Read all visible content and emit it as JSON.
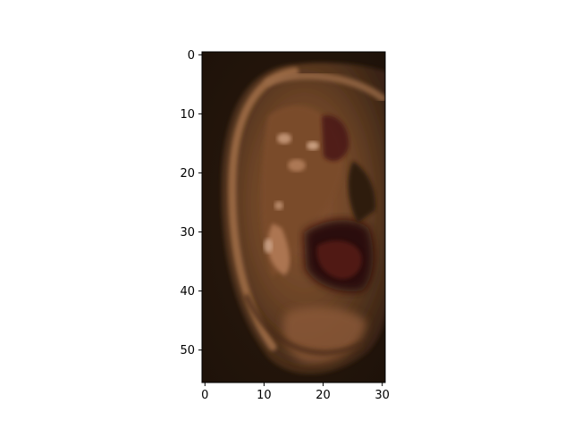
{
  "figure": {
    "background": "#ffffff",
    "subject": "ear-closeup-pixel-image"
  },
  "image": {
    "x_axis": {
      "range": [
        -0.5,
        30.5
      ],
      "ticks": [
        0,
        10,
        20,
        30
      ],
      "tick_labels": [
        "0",
        "10",
        "20",
        "30"
      ]
    },
    "y_axis": {
      "range": [
        -0.5,
        55.5
      ],
      "ticks": [
        0,
        10,
        20,
        30,
        40,
        50
      ],
      "tick_labels": [
        "0",
        "10",
        "20",
        "30",
        "40",
        "50"
      ]
    },
    "palette": {
      "background_dark": "#1e1209",
      "skin_dark": "#3a2414",
      "skin_mid": "#6b4326",
      "skin_warm": "#8a5634",
      "skin_light": "#a36f4a",
      "highlight": "#c89a7a",
      "cavity_red": "#3f1410",
      "cavity_deep": "#2a0c08"
    }
  }
}
